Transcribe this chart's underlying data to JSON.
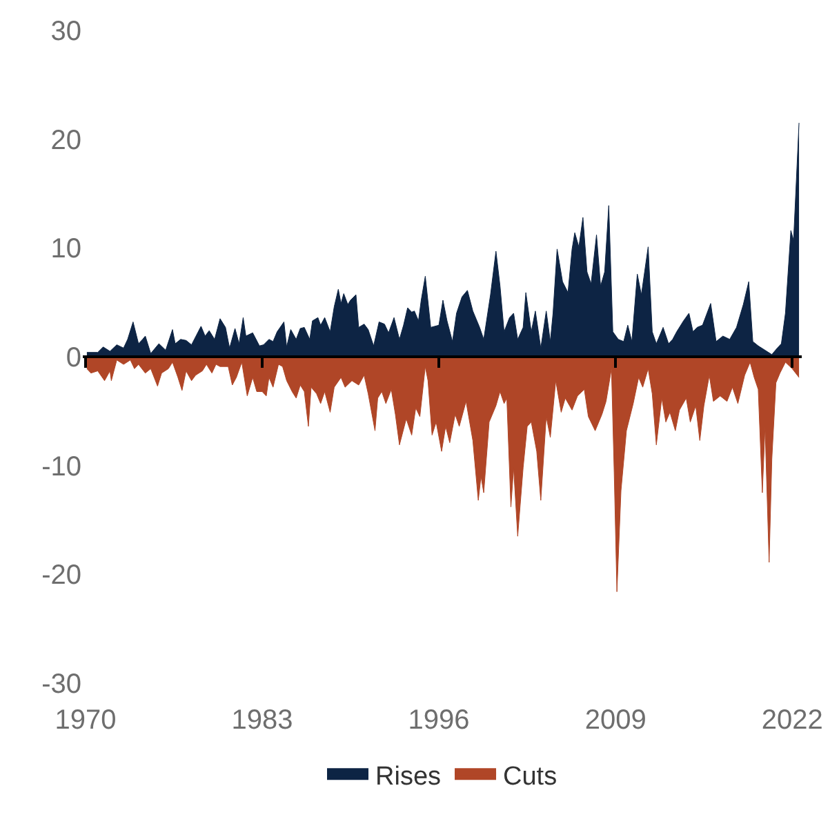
{
  "chart_data": {
    "type": "area",
    "xlim": [
      1969.8,
      2022.7
    ],
    "xticks": [
      1970,
      1983,
      1996,
      2009,
      2022
    ],
    "ylim": [
      -30,
      30
    ],
    "yticks": [
      -30,
      -20,
      -10,
      0,
      10,
      20,
      30
    ],
    "legend": "bottom",
    "series": [
      {
        "name": "Rises",
        "color": "#0d2444",
        "x": [
          1970.1,
          1970.9,
          1971.3,
          1971.8,
          1972.3,
          1972.8,
          1973.1,
          1973.5,
          1973.9,
          1974.2,
          1974.4,
          1974.8,
          1975.4,
          1975.9,
          1976.4,
          1976.6,
          1977.0,
          1977.4,
          1977.8,
          1978.5,
          1978.8,
          1979.1,
          1979.5,
          1979.9,
          1980.3,
          1980.6,
          1981.0,
          1981.3,
          1981.6,
          1981.8,
          1982.3,
          1982.8,
          1983.1,
          1983.5,
          1983.8,
          1984.1,
          1984.6,
          1984.8,
          1985.1,
          1985.5,
          1985.8,
          1986.1,
          1986.5,
          1986.7,
          1987.1,
          1987.3,
          1987.6,
          1988.0,
          1988.3,
          1988.6,
          1988.8,
          1989.0,
          1989.3,
          1989.5,
          1989.9,
          1990.1,
          1990.5,
          1990.8,
          1991.2,
          1991.6,
          1992.0,
          1992.3,
          1992.7,
          1993.1,
          1993.4,
          1993.7,
          1994.0,
          1994.2,
          1994.5,
          1994.7,
          1995.0,
          1995.4,
          1996.0,
          1996.3,
          1996.6,
          1997.0,
          1997.3,
          1997.7,
          1998.1,
          1998.5,
          1999.0,
          1999.3,
          1999.8,
          2000.2,
          2000.5,
          2000.8,
          2001.2,
          2001.5,
          2001.8,
          2002.2,
          2002.4,
          2002.8,
          2003.1,
          2003.5,
          2003.9,
          2004.2,
          2004.4,
          2004.7,
          2005.1,
          2005.5,
          2005.8,
          2006.0,
          2006.3,
          2006.6,
          2006.9,
          2007.2,
          2007.6,
          2007.9,
          2008.2,
          2008.5,
          2008.8,
          2009.2,
          2009.6,
          2009.9,
          2010.2,
          2010.6,
          2010.9,
          2011.4,
          2011.7,
          2012.0,
          2012.5,
          2012.9,
          2013.2,
          2013.5,
          2014.0,
          2014.4,
          2014.7,
          2015.0,
          2015.4,
          2016.0,
          2016.4,
          2016.9,
          2017.4,
          2017.9,
          2018.4,
          2018.8,
          2019.1,
          2019.5,
          2020.0,
          2020.5,
          2020.9,
          2021.2,
          2021.5,
          2021.9,
          2022.1,
          2022.5
        ],
        "values": [
          0.4,
          0.4,
          0.9,
          0.5,
          1.1,
          0.8,
          1.6,
          3.2,
          1.2,
          1.6,
          1.9,
          0.3,
          1.2,
          0.6,
          2.5,
          1.2,
          1.6,
          1.5,
          1.1,
          2.8,
          1.9,
          2.4,
          1.6,
          3.5,
          2.7,
          0.8,
          2.6,
          1.2,
          3.6,
          1.9,
          2.2,
          1.0,
          1.1,
          1.6,
          1.4,
          2.3,
          3.2,
          0.9,
          2.5,
          1.6,
          2.6,
          2.7,
          1.6,
          3.3,
          3.6,
          2.9,
          3.6,
          2.3,
          4.6,
          6.2,
          4.9,
          5.8,
          4.8,
          5.2,
          5.7,
          2.7,
          3.0,
          2.5,
          1.0,
          3.2,
          3.0,
          2.2,
          3.6,
          1.6,
          2.9,
          4.5,
          4.1,
          4.2,
          3.3,
          5.2,
          7.4,
          2.7,
          2.9,
          5.2,
          3.3,
          1.4,
          4.0,
          5.5,
          6.1,
          4.2,
          2.7,
          1.6,
          5.7,
          9.7,
          6.5,
          2.3,
          3.6,
          4.0,
          1.6,
          2.7,
          5.9,
          2.3,
          4.2,
          0.8,
          4.2,
          1.4,
          4.0,
          9.9,
          6.9,
          5.9,
          9.9,
          11.4,
          10.1,
          12.8,
          7.8,
          6.7,
          11.2,
          6.5,
          7.8,
          13.9,
          2.3,
          1.6,
          1.4,
          2.9,
          1.4,
          7.6,
          5.7,
          10.1,
          2.3,
          1.2,
          2.7,
          1.2,
          1.6,
          2.3,
          3.3,
          4.0,
          2.3,
          2.7,
          2.9,
          4.9,
          1.4,
          1.9,
          1.6,
          2.7,
          4.8,
          6.9,
          1.4,
          1.0,
          0.6,
          0.2,
          0.8,
          1.2,
          4.0,
          11.6,
          10.7,
          21.5
        ]
      },
      {
        "name": "Cuts",
        "color": "#b04627",
        "x": [
          1970.1,
          1970.4,
          1970.9,
          1971.4,
          1971.8,
          1971.9,
          1972.3,
          1972.8,
          1973.3,
          1973.6,
          1973.9,
          1974.4,
          1974.8,
          1975.3,
          1975.6,
          1976.1,
          1976.4,
          1976.8,
          1977.1,
          1977.4,
          1977.8,
          1978.1,
          1978.6,
          1978.9,
          1979.3,
          1979.6,
          1979.9,
          1980.5,
          1980.8,
          1981.1,
          1981.5,
          1981.9,
          1982.3,
          1982.6,
          1983.0,
          1983.3,
          1983.5,
          1983.8,
          1984.2,
          1984.5,
          1984.8,
          1985.2,
          1985.5,
          1985.8,
          1986.1,
          1986.4,
          1986.6,
          1987.0,
          1987.3,
          1987.6,
          1988.0,
          1988.3,
          1988.8,
          1989.1,
          1989.6,
          1990.1,
          1990.5,
          1990.8,
          1991.3,
          1991.5,
          1991.8,
          1992.1,
          1992.5,
          1992.8,
          1993.1,
          1993.6,
          1994.0,
          1994.3,
          1994.6,
          1995.0,
          1995.2,
          1995.5,
          1995.8,
          1996.2,
          1996.5,
          1996.8,
          1997.2,
          1997.5,
          1998.0,
          1998.5,
          1998.9,
          1999.1,
          1999.3,
          1999.7,
          2000.2,
          2000.5,
          2000.8,
          2001.0,
          2001.3,
          2001.5,
          2001.8,
          2002.2,
          2002.5,
          2002.8,
          2003.2,
          2003.5,
          2003.9,
          2004.2,
          2004.6,
          2005.0,
          2005.3,
          2005.8,
          2006.2,
          2006.7,
          2007.0,
          2007.5,
          2008.0,
          2008.3,
          2008.7,
          2008.9,
          2009.1,
          2009.4,
          2009.8,
          2010.3,
          2010.7,
          2011.0,
          2011.4,
          2011.7,
          2012.0,
          2012.4,
          2012.7,
          2013.0,
          2013.4,
          2013.7,
          2014.2,
          2014.5,
          2014.9,
          2015.2,
          2015.5,
          2015.9,
          2016.2,
          2016.7,
          2017.2,
          2017.6,
          2018.0,
          2018.5,
          2018.9,
          2019.2,
          2019.5,
          2019.8,
          2020.0,
          2020.3,
          2020.5,
          2020.8,
          2021.1,
          2021.5,
          2022.0,
          2022.5
        ],
        "values": [
          -1.1,
          -1.5,
          -1.3,
          -2.2,
          -1.3,
          -2.2,
          -0.3,
          -0.7,
          -0.3,
          -1.1,
          -0.7,
          -1.5,
          -1.1,
          -2.7,
          -1.5,
          -1.1,
          -0.5,
          -1.9,
          -3.1,
          -1.3,
          -2.2,
          -1.7,
          -1.3,
          -0.7,
          -1.5,
          -0.7,
          -0.9,
          -0.9,
          -2.6,
          -1.9,
          -0.5,
          -3.6,
          -1.9,
          -3.2,
          -3.2,
          -3.6,
          -1.9,
          -2.8,
          -0.7,
          -0.9,
          -2.2,
          -3.2,
          -3.8,
          -2.6,
          -3.2,
          -6.4,
          -2.8,
          -3.4,
          -4.3,
          -3.2,
          -5.1,
          -2.8,
          -1.9,
          -2.8,
          -2.2,
          -2.6,
          -1.7,
          -3.4,
          -6.8,
          -3.8,
          -3.2,
          -4.3,
          -3.0,
          -5.3,
          -8.1,
          -5.7,
          -7.2,
          -4.7,
          -5.5,
          -0.9,
          -2.2,
          -7.2,
          -6.0,
          -8.7,
          -6.4,
          -7.9,
          -5.3,
          -6.4,
          -4.1,
          -7.7,
          -13.2,
          -11.0,
          -12.5,
          -6.0,
          -4.5,
          -3.2,
          -4.3,
          -3.8,
          -13.8,
          -10.2,
          -16.5,
          -10.2,
          -6.4,
          -6.0,
          -8.7,
          -13.2,
          -5.5,
          -7.4,
          -2.2,
          -5.1,
          -3.8,
          -4.9,
          -3.6,
          -3.0,
          -5.5,
          -6.8,
          -5.3,
          -4.1,
          -1.1,
          -10.6,
          -21.6,
          -12.3,
          -6.8,
          -4.3,
          -1.9,
          -2.8,
          -1.1,
          -3.4,
          -8.1,
          -3.8,
          -6.0,
          -5.1,
          -6.8,
          -4.9,
          -3.8,
          -6.0,
          -4.5,
          -7.7,
          -4.5,
          -1.7,
          -4.1,
          -3.6,
          -4.1,
          -2.8,
          -4.3,
          -1.7,
          -0.5,
          -1.9,
          -3.0,
          -12.5,
          -6.4,
          -18.9,
          -9.4,
          -2.4,
          -1.5,
          -0.5,
          -1.1,
          -1.9
        ]
      }
    ]
  }
}
